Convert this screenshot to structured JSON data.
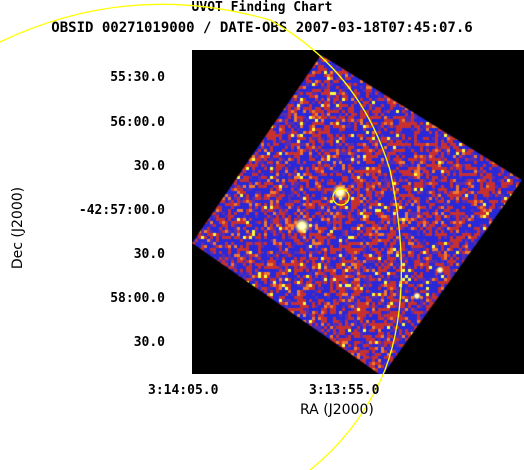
{
  "title": "UVOT Finding Chart",
  "subtitle": "OBSID 00271019000 / DATE-OBS 2007-03-18T07:45:07.6",
  "axes": {
    "xlabel": "RA (J2000)",
    "ylabel": "Dec (J2000)",
    "ra_ticks": [
      "3:14:05.0",
      "3:13:55.0"
    ],
    "dec_ticks": [
      "55:30.0",
      "56:00.0",
      "30.0",
      "-42:57:00.0",
      "30.0",
      "58:00.0",
      "30.0"
    ]
  },
  "colors": {
    "background": "#000000",
    "image_low": "#2828d8",
    "image_mid": "#c83030",
    "image_high": "#ffff40",
    "circle": "#ffff00"
  }
}
